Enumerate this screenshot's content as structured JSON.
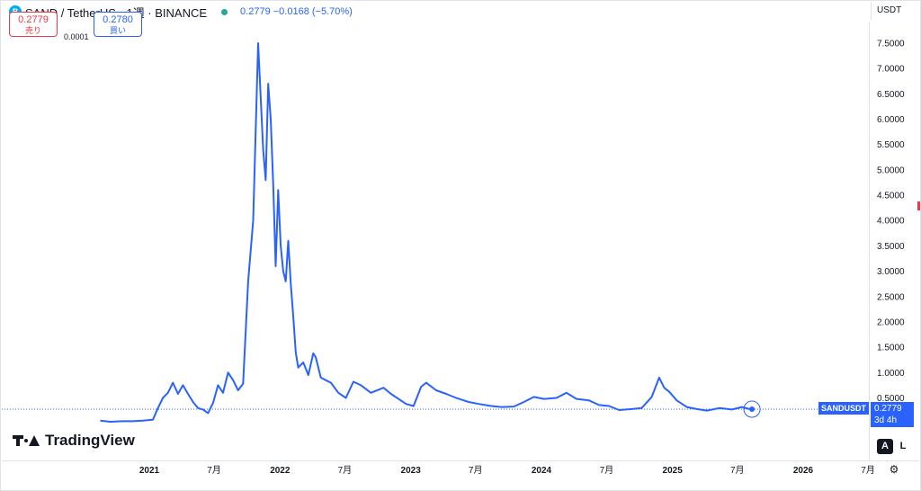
{
  "header": {
    "symbol_icon": "B",
    "title": "SAND / TetherUS · 1週 · BINANCE",
    "ohlc_text": "0.2779 −0.0168 (−5.70%)"
  },
  "trade": {
    "sell_price": "0.2779",
    "sell_label": "売り",
    "spread": "0.0001",
    "buy_price": "0.2780",
    "buy_label": "買い"
  },
  "currency": "USDT",
  "price_tag": {
    "symbol": "SANDUSDT",
    "price": "0.2779",
    "countdown": "3d 4h"
  },
  "scale_buttons": {
    "auto": "A",
    "log": "L"
  },
  "logo_text": "TradingView",
  "colors": {
    "line": "#2962ff",
    "grid": "#e0e3eb",
    "sell": "#f23645",
    "buy": "#2962ff"
  },
  "chart_data": {
    "type": "line",
    "series": [
      {
        "x": [
          "2020-08-17",
          "2020-09-14",
          "2020-10-19",
          "2020-11-16",
          "2020-12-14",
          "2021-01-11",
          "2021-01-25",
          "2021-02-08",
          "2021-02-22",
          "2021-03-08",
          "2021-03-22",
          "2021-04-05",
          "2021-04-19",
          "2021-05-03",
          "2021-05-17",
          "2021-05-31",
          "2021-06-14",
          "2021-06-28",
          "2021-07-12",
          "2021-07-26",
          "2021-08-09",
          "2021-08-23",
          "2021-09-06",
          "2021-09-20",
          "2021-10-04",
          "2021-10-18",
          "2021-11-01",
          "2021-11-15",
          "2021-11-22",
          "2021-11-29",
          "2021-12-06",
          "2021-12-13",
          "2021-12-20",
          "2021-12-27",
          "2022-01-03",
          "2022-01-10",
          "2022-01-17",
          "2022-01-24",
          "2022-01-31",
          "2022-02-07",
          "2022-02-14",
          "2022-02-21",
          "2022-03-07",
          "2022-03-21",
          "2022-04-04",
          "2022-04-11",
          "2022-04-25",
          "2022-05-09",
          "2022-05-23",
          "2022-06-13",
          "2022-07-04",
          "2022-07-25",
          "2022-08-15",
          "2022-09-12",
          "2022-10-17",
          "2022-11-07",
          "2022-11-28",
          "2022-12-19",
          "2023-01-09",
          "2023-01-30",
          "2023-02-13",
          "2023-03-13",
          "2023-04-10",
          "2023-05-08",
          "2023-06-12",
          "2023-07-10",
          "2023-08-14",
          "2023-09-11",
          "2023-10-16",
          "2023-11-13",
          "2023-12-11",
          "2024-01-08",
          "2024-02-12",
          "2024-03-11",
          "2024-04-08",
          "2024-05-13",
          "2024-06-10",
          "2024-07-08",
          "2024-08-05",
          "2024-09-09",
          "2024-10-07",
          "2024-11-04",
          "2024-11-25",
          "2024-12-09",
          "2024-12-23",
          "2025-01-13",
          "2025-02-10",
          "2025-03-10",
          "2025-04-07",
          "2025-05-12",
          "2025-06-16",
          "2025-07-14",
          "2025-08-04",
          "2025-08-11"
        ],
        "values": [
          0.05,
          0.03,
          0.04,
          0.04,
          0.05,
          0.07,
          0.3,
          0.5,
          0.6,
          0.8,
          0.58,
          0.75,
          0.58,
          0.42,
          0.3,
          0.27,
          0.2,
          0.4,
          0.75,
          0.6,
          1.0,
          0.85,
          0.65,
          0.78,
          2.8,
          4.0,
          7.5,
          5.4,
          4.8,
          6.7,
          6.0,
          4.7,
          3.1,
          4.6,
          3.5,
          3.0,
          2.8,
          3.6,
          2.75,
          2.1,
          1.4,
          1.1,
          1.2,
          0.95,
          1.38,
          1.3,
          0.9,
          0.85,
          0.8,
          0.6,
          0.5,
          0.82,
          0.75,
          0.6,
          0.7,
          0.58,
          0.48,
          0.38,
          0.34,
          0.72,
          0.8,
          0.65,
          0.58,
          0.5,
          0.42,
          0.38,
          0.34,
          0.32,
          0.33,
          0.42,
          0.52,
          0.48,
          0.5,
          0.6,
          0.48,
          0.45,
          0.36,
          0.34,
          0.26,
          0.28,
          0.3,
          0.52,
          0.9,
          0.7,
          0.62,
          0.45,
          0.32,
          0.28,
          0.25,
          0.3,
          0.27,
          0.32,
          0.28,
          0.2779
        ]
      }
    ],
    "y_ticks": [
      "0.5000",
      "1.0000",
      "1.5000",
      "2.0000",
      "2.5000",
      "3.0000",
      "3.5000",
      "4.0000",
      "4.5000",
      "5.0000",
      "5.5000",
      "6.0000",
      "6.5000",
      "7.0000",
      "7.5000"
    ],
    "x_ticks": [
      {
        "label": "2021",
        "date": "2021-01-01",
        "bold": true
      },
      {
        "label": "7月",
        "date": "2021-07-01",
        "bold": false
      },
      {
        "label": "2022",
        "date": "2022-01-01",
        "bold": true
      },
      {
        "label": "7月",
        "date": "2022-07-01",
        "bold": false
      },
      {
        "label": "2023",
        "date": "2023-01-01",
        "bold": true
      },
      {
        "label": "7月",
        "date": "2023-07-01",
        "bold": false
      },
      {
        "label": "2024",
        "date": "2024-01-01",
        "bold": true
      },
      {
        "label": "7月",
        "date": "2024-07-01",
        "bold": false
      },
      {
        "label": "2025",
        "date": "2025-01-01",
        "bold": true
      },
      {
        "label": "7月",
        "date": "2025-07-01",
        "bold": false
      },
      {
        "label": "2026",
        "date": "2026-01-01",
        "bold": true
      },
      {
        "label": "7月",
        "date": "2026-07-01",
        "bold": false
      }
    ],
    "last_value": 0.2779,
    "grid": false,
    "ylim": [
      0,
      7.5
    ]
  }
}
